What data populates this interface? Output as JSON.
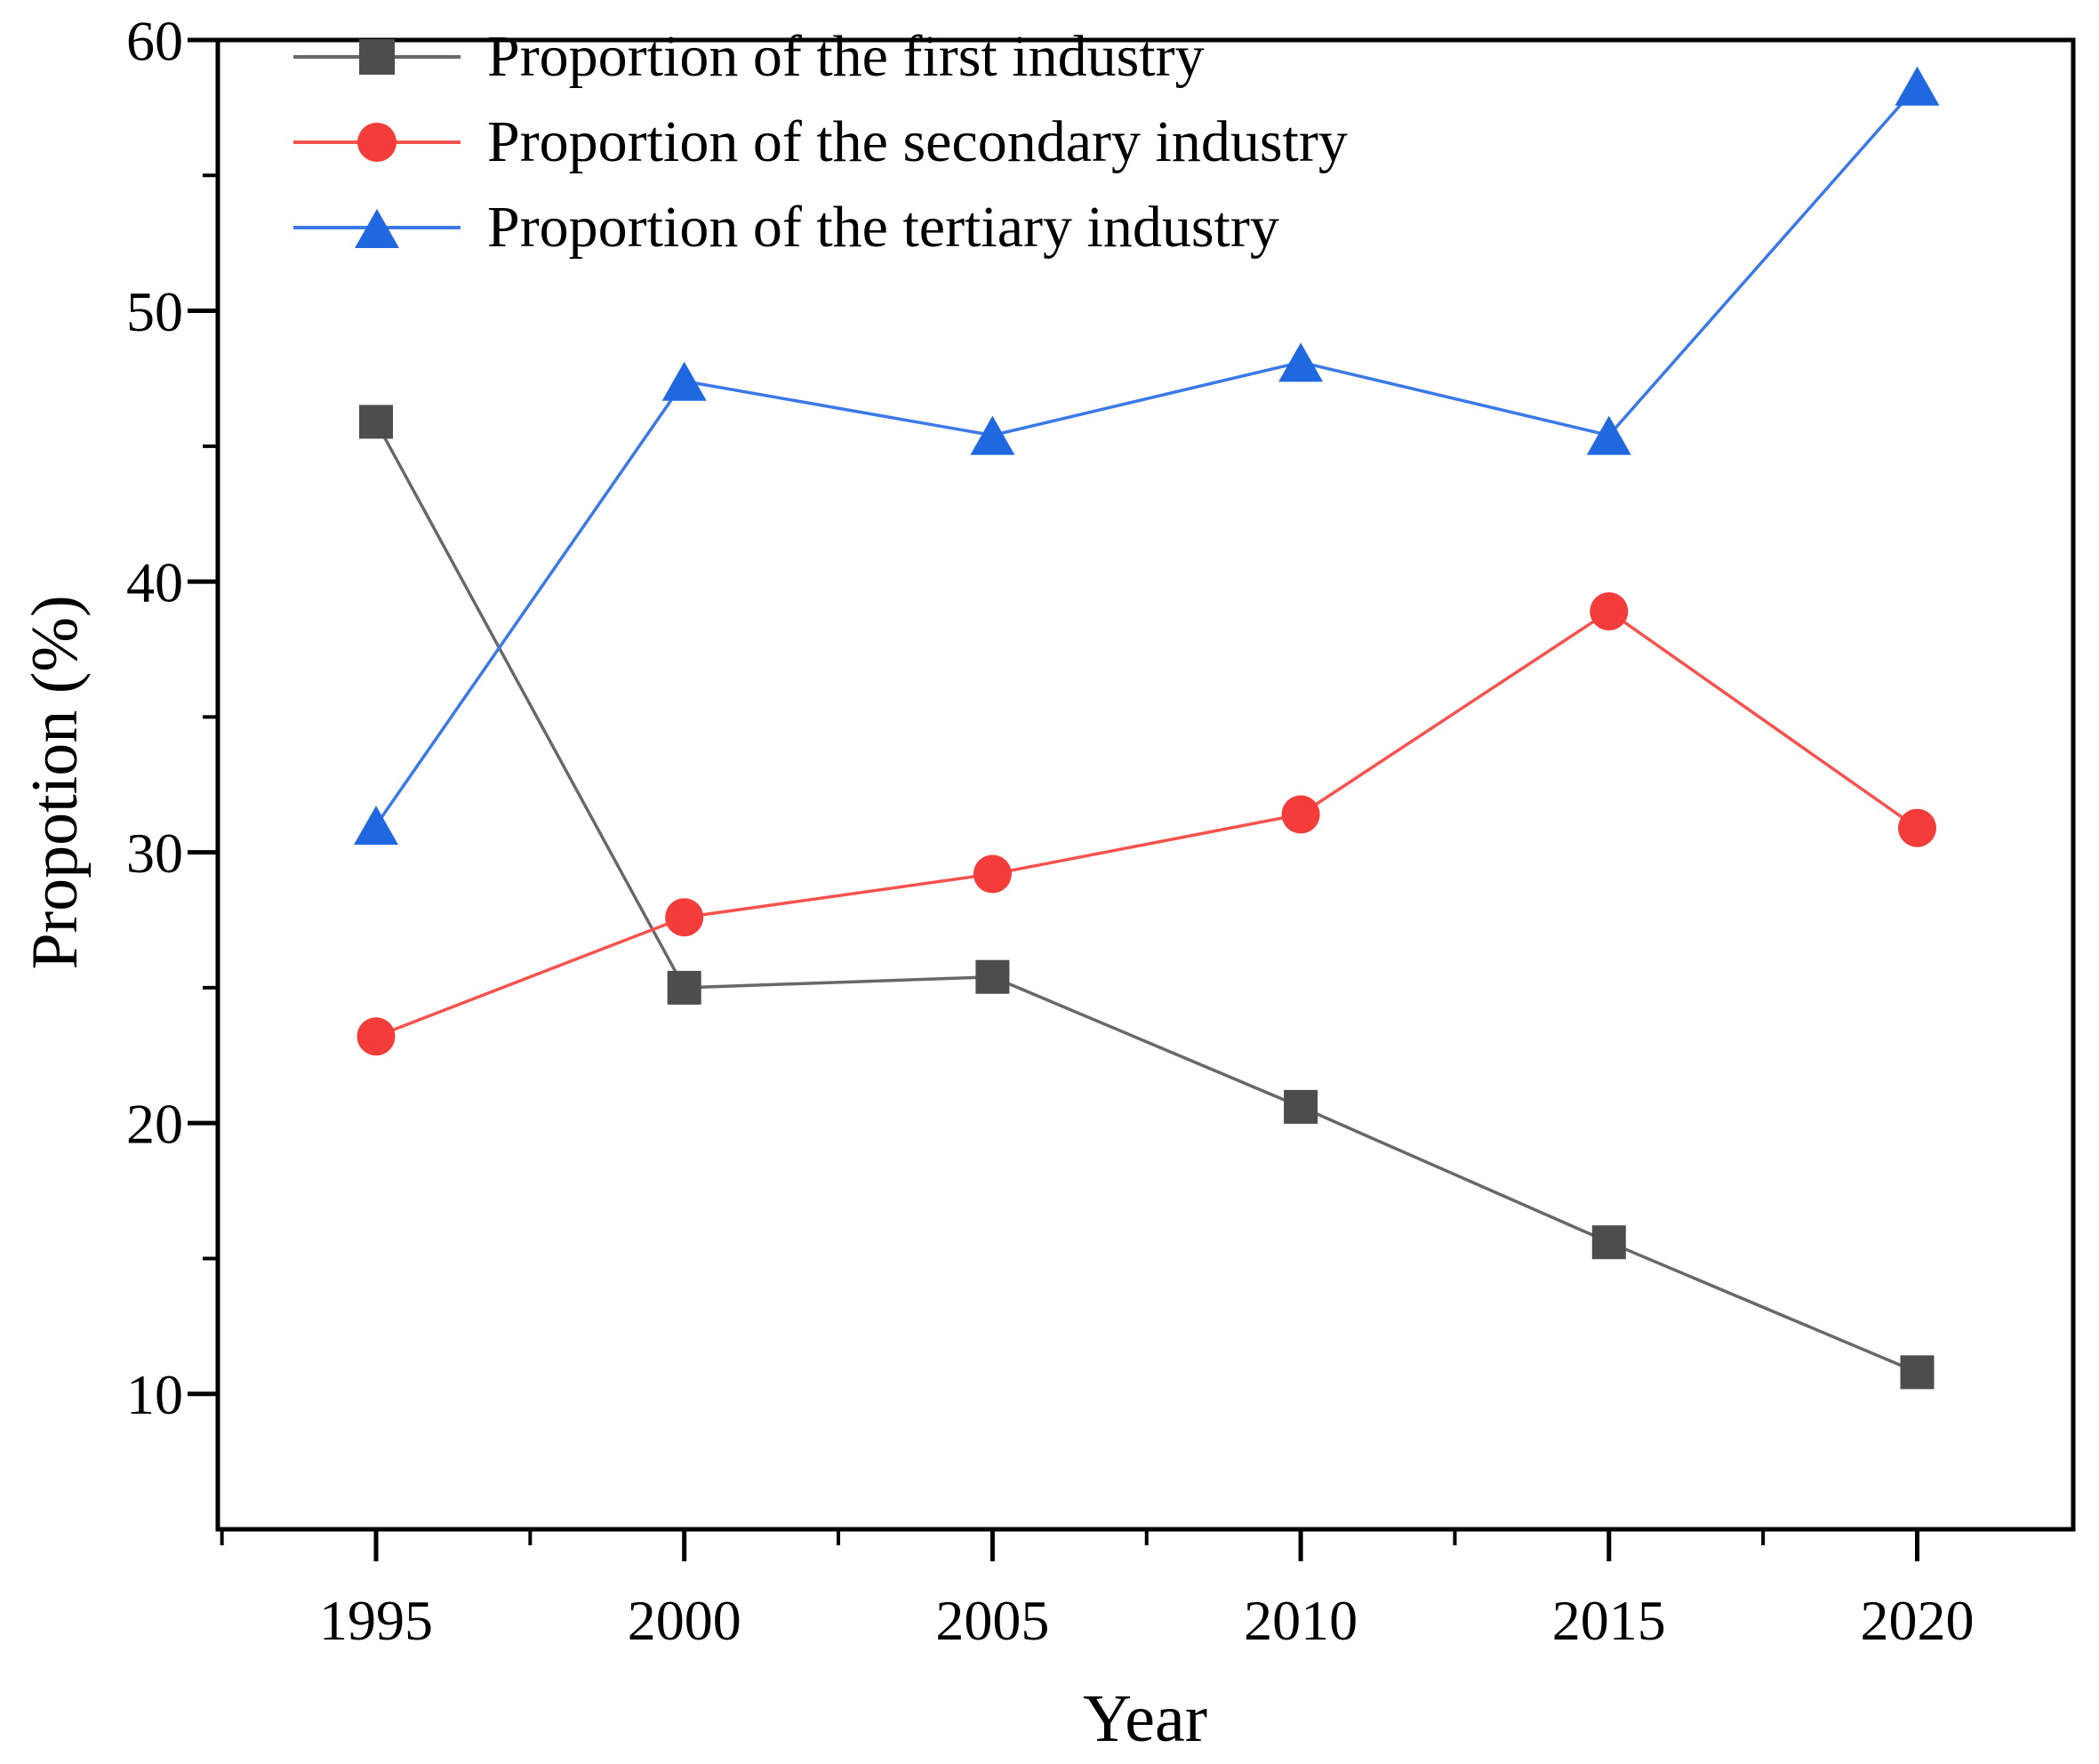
{
  "figure": {
    "background_color": "#ffffff",
    "axis_color": "#000000",
    "text_color": "#000000"
  },
  "chart_data": {
    "type": "line",
    "title": "",
    "xlabel": "Year",
    "ylabel": "Propotion (%)",
    "categories": [
      "1995",
      "2000",
      "2005",
      "2010",
      "2015",
      "2020"
    ],
    "series": [
      {
        "name": "Proportion of the first industry",
        "marker": "square",
        "marker_color": "#4d4d4d",
        "line_color": "#686868",
        "values": [
          45.9,
          25.0,
          25.4,
          20.6,
          15.6,
          10.8
        ]
      },
      {
        "name": "Proportion of the secondary industry",
        "marker": "circle",
        "marker_color": "#f43c3a",
        "line_color": "#f7524d",
        "values": [
          23.2,
          27.6,
          29.2,
          31.4,
          38.9,
          30.9
        ]
      },
      {
        "name": "Proportion of the tertiary industry",
        "marker": "triangle",
        "marker_color": "#1f68df",
        "line_color": "#3b79e8",
        "values": [
          31.0,
          47.4,
          45.4,
          48.1,
          45.4,
          58.3
        ]
      }
    ],
    "ylim": [
      5,
      60
    ],
    "y_major_ticks": [
      10,
      20,
      30,
      40,
      50,
      60
    ],
    "y_minor_ticks": [
      15,
      25,
      35,
      45,
      55
    ],
    "x_minor_ticks_between_categories": true,
    "grid": false,
    "legend_position": "inside-top-left"
  }
}
